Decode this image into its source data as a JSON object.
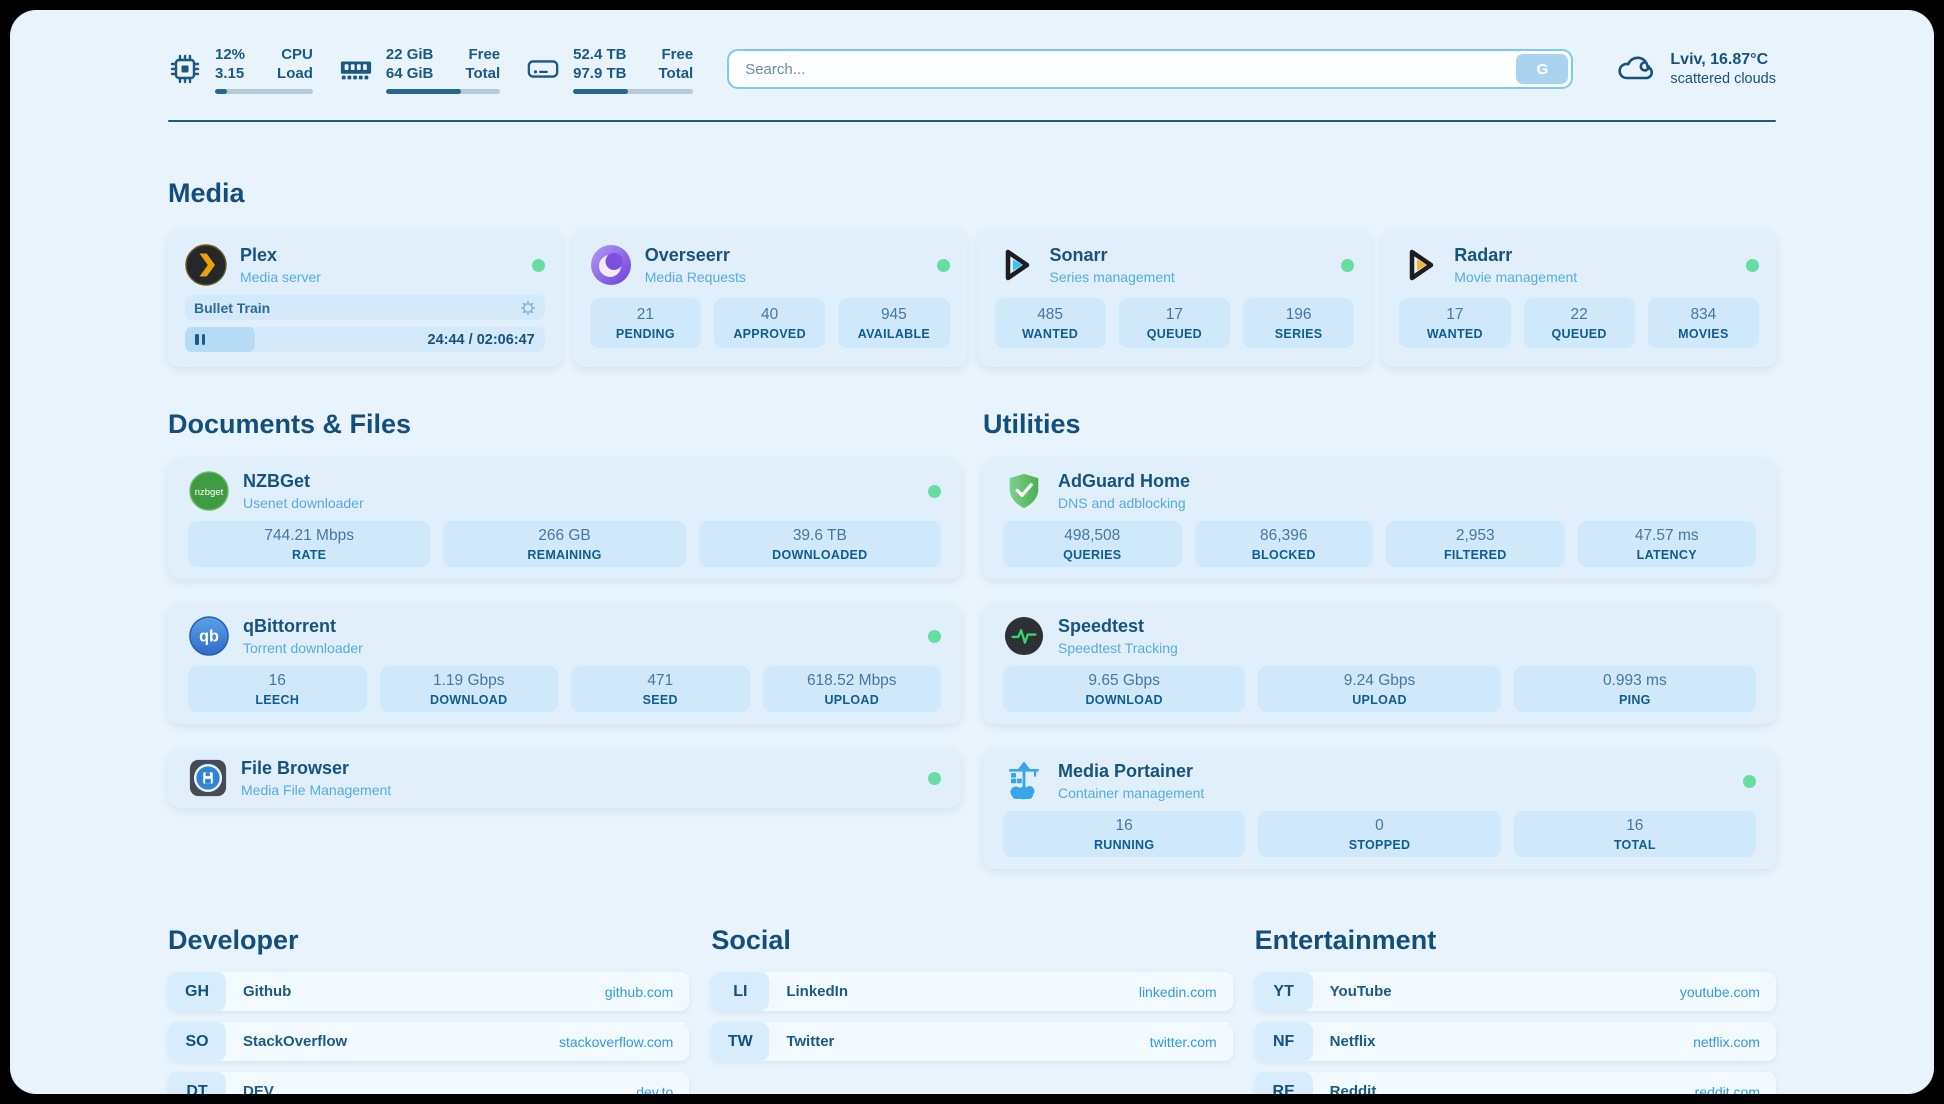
{
  "colors": {
    "background": "#e9f3fb",
    "accent_dark": "#17537f",
    "accent_light": "#55ace3",
    "status_online": "#67dda2",
    "link_blue": "#2f9ae0",
    "stat_box": "#cfe8fa"
  },
  "topbar": {
    "resources": [
      {
        "icon": "cpu-icon",
        "values": [
          "12%",
          "3.15"
        ],
        "labels": [
          "CPU",
          "Load"
        ],
        "progress": 12
      },
      {
        "icon": "ram-icon",
        "values": [
          "22 GiB",
          "64 GiB"
        ],
        "labels": [
          "Free",
          "Total"
        ],
        "progress": 66
      },
      {
        "icon": "disk-icon",
        "values": [
          "52.4 TB",
          "97.9 TB"
        ],
        "labels": [
          "Free",
          "Total"
        ],
        "progress": 46
      }
    ],
    "search": {
      "placeholder": "Search...",
      "button_label": "G"
    },
    "weather": {
      "icon": "cloud-icon",
      "summary": "Lviv, 16.87°C",
      "condition": "scattered clouds"
    }
  },
  "media": {
    "title": "Media",
    "apps": [
      {
        "name": "Plex",
        "description": "Media server",
        "icon": "plex-icon",
        "player": {
          "title": "Bullet Train",
          "time": "24:44 / 02:06:47",
          "progress": 19.5
        }
      },
      {
        "name": "Overseerr",
        "description": "Media Requests",
        "icon": "overseerr-icon",
        "stats": [
          {
            "value": "21",
            "label": "PENDING"
          },
          {
            "value": "40",
            "label": "APPROVED"
          },
          {
            "value": "945",
            "label": "AVAILABLE"
          }
        ]
      },
      {
        "name": "Sonarr",
        "description": "Series management",
        "icon": "sonarr-icon",
        "stats": [
          {
            "value": "485",
            "label": "WANTED"
          },
          {
            "value": "17",
            "label": "QUEUED"
          },
          {
            "value": "196",
            "label": "SERIES"
          }
        ]
      },
      {
        "name": "Radarr",
        "description": "Movie management",
        "icon": "radarr-icon",
        "stats": [
          {
            "value": "17",
            "label": "WANTED"
          },
          {
            "value": "22",
            "label": "QUEUED"
          },
          {
            "value": "834",
            "label": "MOVIES"
          }
        ]
      }
    ]
  },
  "documents": {
    "title": "Documents & Files",
    "apps": [
      {
        "name": "NZBGet",
        "description": "Usenet downloader",
        "icon": "nzbget-icon",
        "stats": [
          {
            "value": "744.21 Mbps",
            "label": "RATE"
          },
          {
            "value": "266 GB",
            "label": "REMAINING"
          },
          {
            "value": "39.6 TB",
            "label": "DOWNLOADED"
          }
        ]
      },
      {
        "name": "qBittorrent",
        "description": "Torrent downloader",
        "icon": "qbittorrent-icon",
        "stats": [
          {
            "value": "16",
            "label": "LEECH"
          },
          {
            "value": "1.19 Gbps",
            "label": "DOWNLOAD"
          },
          {
            "value": "471",
            "label": "SEED"
          },
          {
            "value": "618.52 Mbps",
            "label": "UPLOAD"
          }
        ]
      },
      {
        "name": "File Browser",
        "description": "Media File Management",
        "icon": "filebrowser-icon"
      }
    ]
  },
  "utilities": {
    "title": "Utilities",
    "apps": [
      {
        "name": "AdGuard Home",
        "description": "DNS and adblocking",
        "icon": "adguard-icon",
        "stats": [
          {
            "value": "498,508",
            "label": "QUERIES"
          },
          {
            "value": "86,396",
            "label": "BLOCKED"
          },
          {
            "value": "2,953",
            "label": "FILTERED"
          },
          {
            "value": "47.57 ms",
            "label": "LATENCY"
          }
        ]
      },
      {
        "name": "Speedtest",
        "description": "Speedtest Tracking",
        "icon": "speedtest-icon",
        "stats": [
          {
            "value": "9.65 Gbps",
            "label": "DOWNLOAD"
          },
          {
            "value": "9.24 Gbps",
            "label": "UPLOAD"
          },
          {
            "value": "0.993 ms",
            "label": "PING"
          }
        ]
      },
      {
        "name": "Media Portainer",
        "description": "Container management",
        "icon": "portainer-icon",
        "stats": [
          {
            "value": "16",
            "label": "RUNNING"
          },
          {
            "value": "0",
            "label": "STOPPED"
          },
          {
            "value": "16",
            "label": "TOTAL"
          }
        ]
      }
    ]
  },
  "bookmarks": [
    {
      "title": "Developer",
      "links": [
        {
          "abbr": "GH",
          "name": "Github",
          "url": "github.com"
        },
        {
          "abbr": "SO",
          "name": "StackOverflow",
          "url": "stackoverflow.com"
        },
        {
          "abbr": "DT",
          "name": "DEV",
          "url": "dev.to"
        }
      ]
    },
    {
      "title": "Social",
      "links": [
        {
          "abbr": "LI",
          "name": "LinkedIn",
          "url": "linkedin.com"
        },
        {
          "abbr": "TW",
          "name": "Twitter",
          "url": "twitter.com"
        }
      ]
    },
    {
      "title": "Entertainment",
      "links": [
        {
          "abbr": "YT",
          "name": "YouTube",
          "url": "youtube.com"
        },
        {
          "abbr": "NF",
          "name": "Netflix",
          "url": "netflix.com"
        },
        {
          "abbr": "RE",
          "name": "Reddit",
          "url": "reddit.com"
        }
      ]
    }
  ]
}
